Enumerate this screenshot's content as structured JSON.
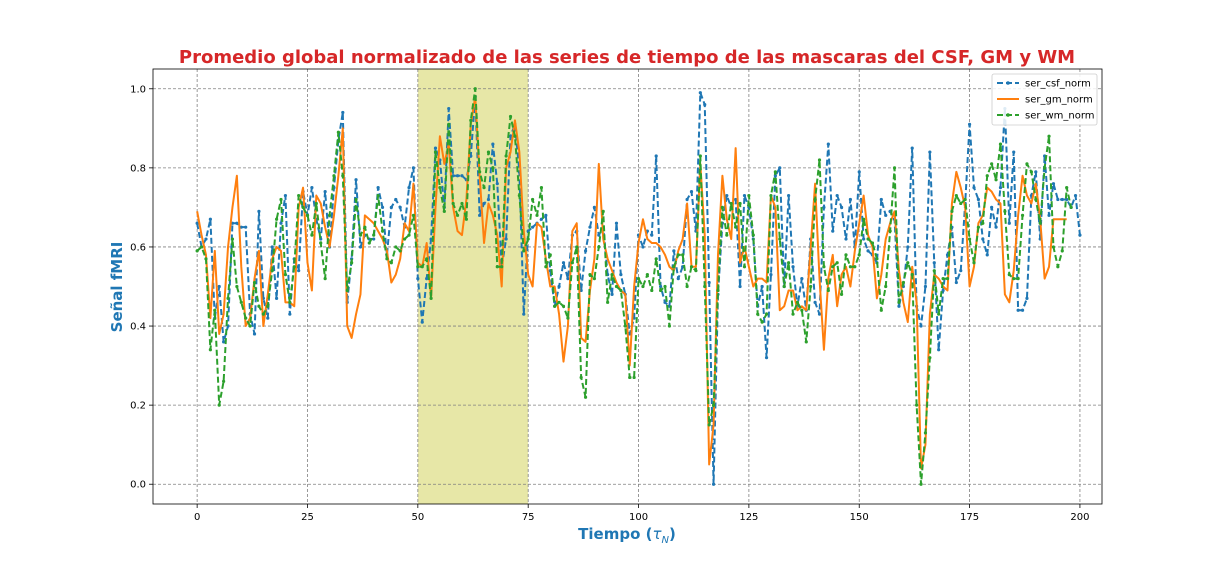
{
  "chart_data": {
    "type": "line",
    "title": "Promedio global normalizado de las series de tiempo de las mascaras del CSF, GM y WM",
    "xlabel_main": "Tiempo (",
    "xlabel_sym": "τ",
    "xlabel_sub": "N",
    "xlabel_close": ")",
    "ylabel": "Señal fMRI",
    "xlim": [
      -10,
      205
    ],
    "ylim": [
      -0.05,
      1.05
    ],
    "xticks": [
      0,
      25,
      50,
      75,
      100,
      125,
      150,
      175,
      200
    ],
    "yticks": [
      0.0,
      0.2,
      0.4,
      0.6,
      0.8,
      1.0
    ],
    "xtick_labels": [
      "0",
      "25",
      "50",
      "75",
      "100",
      "125",
      "150",
      "175",
      "200"
    ],
    "ytick_labels": [
      "0.0",
      "0.2",
      "0.4",
      "0.6",
      "0.8",
      "1.0"
    ],
    "grid": true,
    "legend_position": "top-right",
    "highlight_span": [
      50,
      75
    ],
    "colors": {
      "title": "#d62728",
      "axis_label": "#1f77b4",
      "highlight": "#dfdf8a",
      "grid": "#808080"
    },
    "series": [
      {
        "name": "ser_csf_norm",
        "color": "#1f77b4",
        "style": "dashed-marker",
        "values": [
          0.66,
          0.6,
          0.62,
          0.67,
          0.42,
          0.5,
          0.36,
          0.4,
          0.66,
          0.66,
          0.65,
          0.65,
          0.43,
          0.38,
          0.69,
          0.47,
          0.42,
          0.6,
          0.47,
          0.66,
          0.73,
          0.43,
          0.57,
          0.54,
          0.74,
          0.68,
          0.75,
          0.67,
          0.62,
          0.74,
          0.6,
          0.75,
          0.87,
          0.94,
          0.46,
          0.57,
          0.77,
          0.6,
          0.63,
          0.62,
          0.62,
          0.75,
          0.7,
          0.58,
          0.7,
          0.72,
          0.7,
          0.65,
          0.75,
          0.8,
          0.52,
          0.41,
          0.52,
          0.62,
          0.85,
          0.82,
          0.7,
          0.95,
          0.78,
          0.78,
          0.78,
          0.77,
          0.83,
          0.98,
          0.68,
          0.71,
          0.72,
          0.86,
          0.76,
          0.55,
          0.62,
          0.88,
          0.91,
          0.79,
          0.43,
          0.64,
          0.65,
          0.66,
          0.67,
          0.68,
          0.54,
          0.45,
          0.5,
          0.56,
          0.52,
          0.63,
          0.64,
          0.49,
          0.59,
          0.65,
          0.7,
          0.63,
          0.65,
          0.53,
          0.48,
          0.66,
          0.53,
          0.48,
          0.38,
          0.42,
          0.63,
          0.6,
          0.64,
          0.63,
          0.83,
          0.5,
          0.46,
          0.45,
          0.59,
          0.52,
          0.55,
          0.72,
          0.74,
          0.64,
          0.99,
          0.96,
          0.51,
          0.0,
          0.48,
          0.66,
          0.73,
          0.7,
          0.72,
          0.5,
          0.73,
          0.7,
          0.62,
          0.45,
          0.5,
          0.32,
          0.53,
          0.78,
          0.8,
          0.5,
          0.73,
          0.55,
          0.45,
          0.52,
          0.44,
          0.62,
          0.46,
          0.43,
          0.7,
          0.86,
          0.64,
          0.73,
          0.7,
          0.62,
          0.72,
          0.6,
          0.79,
          0.62,
          0.59,
          0.58,
          0.56,
          0.72,
          0.68,
          0.69,
          0.67,
          0.45,
          0.5,
          0.6,
          0.85,
          0.45,
          0.4,
          0.5,
          0.84,
          0.56,
          0.34,
          0.49,
          0.58,
          0.65,
          0.51,
          0.54,
          0.71,
          0.91,
          0.75,
          0.72,
          0.62,
          0.58,
          0.7,
          0.65,
          0.75,
          0.95,
          0.66,
          0.84,
          0.44,
          0.44,
          0.47,
          0.73,
          0.79,
          0.62,
          0.83,
          0.68,
          0.76,
          0.72,
          0.72,
          0.72,
          0.7,
          0.73,
          0.63
        ]
      },
      {
        "name": "ser_gm_norm",
        "color": "#ff7f0e",
        "style": "solid",
        "values": [
          0.69,
          0.63,
          0.58,
          0.42,
          0.59,
          0.38,
          0.43,
          0.6,
          0.7,
          0.78,
          0.55,
          0.4,
          0.42,
          0.52,
          0.59,
          0.4,
          0.48,
          0.57,
          0.6,
          0.59,
          0.46,
          0.46,
          0.45,
          0.7,
          0.75,
          0.56,
          0.49,
          0.73,
          0.71,
          0.65,
          0.6,
          0.68,
          0.78,
          0.9,
          0.4,
          0.37,
          0.43,
          0.48,
          0.68,
          0.67,
          0.66,
          0.64,
          0.62,
          0.59,
          0.51,
          0.53,
          0.57,
          0.66,
          0.64,
          0.76,
          0.56,
          0.55,
          0.61,
          0.47,
          0.7,
          0.88,
          0.81,
          0.86,
          0.7,
          0.64,
          0.63,
          0.72,
          0.91,
          0.98,
          0.78,
          0.61,
          0.71,
          0.68,
          0.63,
          0.5,
          0.8,
          0.84,
          0.92,
          0.84,
          0.64,
          0.53,
          0.5,
          0.66,
          0.65,
          0.57,
          0.5,
          0.5,
          0.43,
          0.31,
          0.4,
          0.64,
          0.66,
          0.37,
          0.36,
          0.49,
          0.57,
          0.81,
          0.62,
          0.57,
          0.54,
          0.51,
          0.49,
          0.48,
          0.3,
          0.5,
          0.61,
          0.67,
          0.62,
          0.61,
          0.61,
          0.6,
          0.58,
          0.55,
          0.54,
          0.59,
          0.62,
          0.71,
          0.55,
          0.55,
          0.81,
          0.63,
          0.05,
          0.15,
          0.58,
          0.78,
          0.67,
          0.62,
          0.85,
          0.56,
          0.6,
          0.55,
          0.5,
          0.52,
          0.52,
          0.51,
          0.73,
          0.7,
          0.44,
          0.45,
          0.49,
          0.49,
          0.44,
          0.45,
          0.44,
          0.6,
          0.76,
          0.52,
          0.34,
          0.52,
          0.58,
          0.45,
          0.53,
          0.55,
          0.5,
          0.59,
          0.66,
          0.73,
          0.63,
          0.6,
          0.47,
          0.53,
          0.62,
          0.66,
          0.69,
          0.54,
          0.46,
          0.41,
          0.55,
          0.46,
          0.04,
          0.1,
          0.43,
          0.53,
          0.52,
          0.5,
          0.49,
          0.71,
          0.79,
          0.75,
          0.7,
          0.5,
          0.55,
          0.66,
          0.68,
          0.75,
          0.74,
          0.72,
          0.71,
          0.48,
          0.46,
          0.54,
          0.68,
          0.78,
          0.73,
          0.71,
          0.76,
          0.67,
          0.52,
          0.55,
          0.67,
          0.67,
          0.67,
          0.67
        ]
      },
      {
        "name": "ser_wm_norm",
        "color": "#2ca02c",
        "style": "dashed-marker",
        "values": [
          0.59,
          0.6,
          0.57,
          0.34,
          0.44,
          0.2,
          0.26,
          0.47,
          0.62,
          0.5,
          0.46,
          0.42,
          0.4,
          0.51,
          0.45,
          0.43,
          0.45,
          0.54,
          0.67,
          0.72,
          0.53,
          0.46,
          0.55,
          0.73,
          0.7,
          0.68,
          0.63,
          0.71,
          0.61,
          0.52,
          0.68,
          0.78,
          0.89,
          0.78,
          0.49,
          0.56,
          0.72,
          0.63,
          0.65,
          0.61,
          0.63,
          0.73,
          0.64,
          0.57,
          0.56,
          0.6,
          0.59,
          0.62,
          0.63,
          0.68,
          0.55,
          0.55,
          0.57,
          0.47,
          0.84,
          0.75,
          0.69,
          0.91,
          0.71,
          0.68,
          0.71,
          0.67,
          0.92,
          1.0,
          0.79,
          0.75,
          0.84,
          0.8,
          0.55,
          0.55,
          0.83,
          0.93,
          0.88,
          0.73,
          0.59,
          0.62,
          0.72,
          0.68,
          0.75,
          0.55,
          0.58,
          0.45,
          0.46,
          0.45,
          0.42,
          0.56,
          0.6,
          0.27,
          0.22,
          0.53,
          0.52,
          0.6,
          0.69,
          0.46,
          0.53,
          0.5,
          0.49,
          0.4,
          0.27,
          0.27,
          0.52,
          0.5,
          0.53,
          0.49,
          0.57,
          0.49,
          0.5,
          0.4,
          0.55,
          0.58,
          0.58,
          0.5,
          0.55,
          0.54,
          0.83,
          0.5,
          0.15,
          0.2,
          0.49,
          0.7,
          0.63,
          0.71,
          0.65,
          0.71,
          0.55,
          0.73,
          0.63,
          0.43,
          0.41,
          0.43,
          0.73,
          0.79,
          0.62,
          0.5,
          0.56,
          0.43,
          0.46,
          0.44,
          0.36,
          0.5,
          0.72,
          0.82,
          0.55,
          0.49,
          0.55,
          0.56,
          0.48,
          0.58,
          0.55,
          0.55,
          0.58,
          0.67,
          0.62,
          0.61,
          0.57,
          0.44,
          0.5,
          0.64,
          0.8,
          0.46,
          0.51,
          0.56,
          0.53,
          0.2,
          0.0,
          0.13,
          0.32,
          0.54,
          0.43,
          0.52,
          0.52,
          0.69,
          0.73,
          0.71,
          0.72,
          0.62,
          0.56,
          0.65,
          0.66,
          0.78,
          0.81,
          0.77,
          0.86,
          0.69,
          0.53,
          0.52,
          0.52,
          0.68,
          0.81,
          0.79,
          0.72,
          0.66,
          0.8,
          0.88,
          0.6,
          0.55,
          0.59,
          0.75,
          0.7
        ]
      }
    ]
  }
}
